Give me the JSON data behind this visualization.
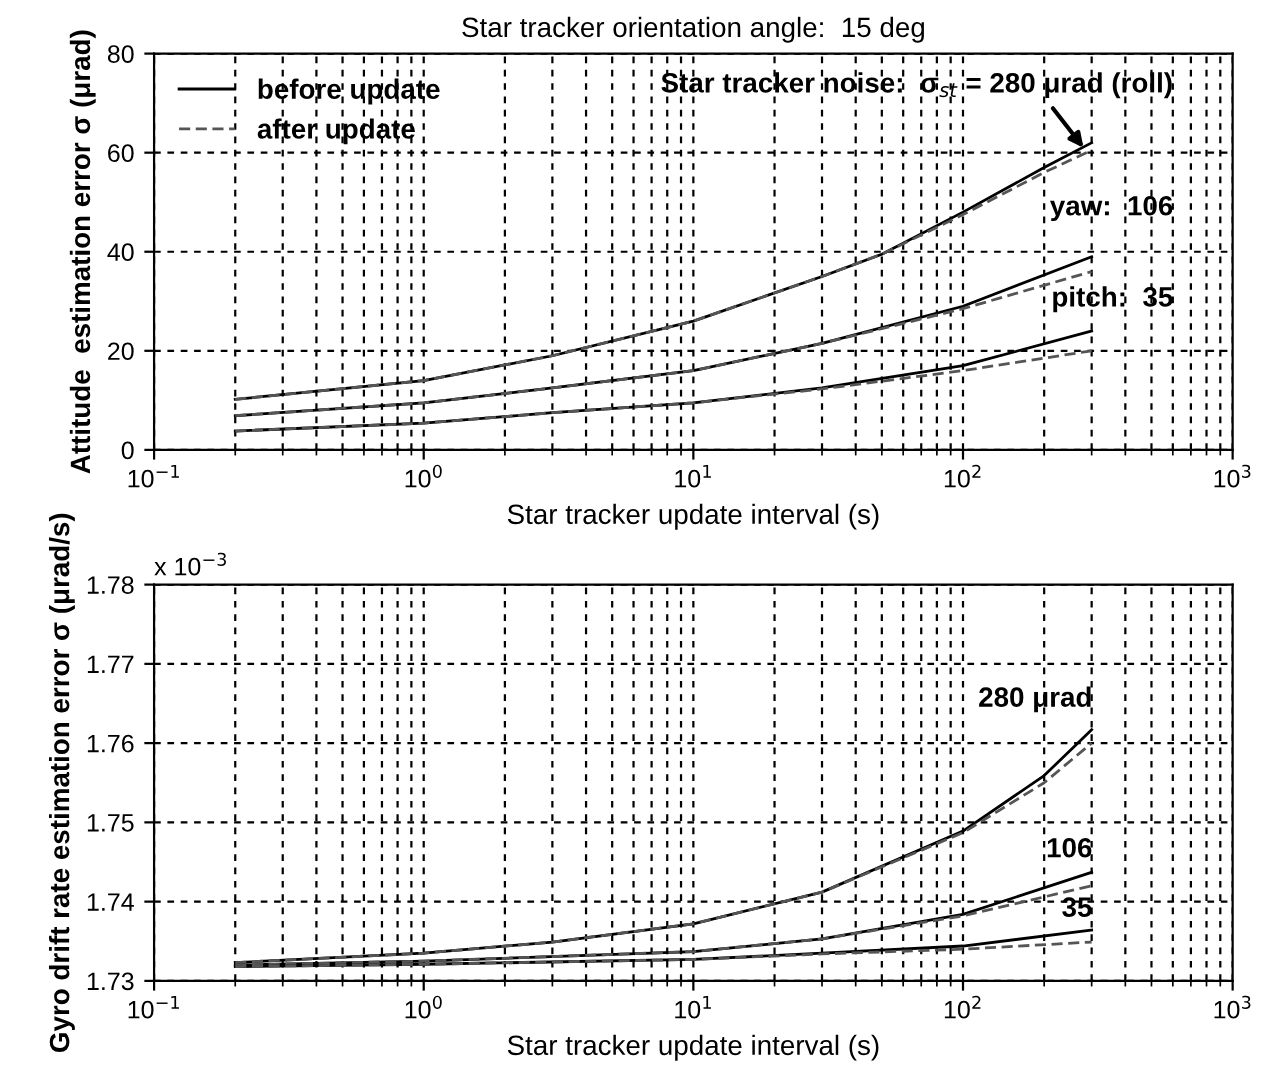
{
  "chart_data": [
    {
      "type": "line",
      "title": "Star tracker orientation angle:  15 deg",
      "xlabel": "Star tracker update interval (s)",
      "ylabel": "Attitude  estimation error σ (μrad)",
      "log": "x",
      "xlim": [
        0.1,
        1000
      ],
      "xticks": [
        {
          "value": 0.1,
          "label": "10$^{−1}$"
        },
        {
          "value": 1,
          "label": "10$^{0}$"
        },
        {
          "value": 10,
          "label": "10$^{1}$"
        },
        {
          "value": 100,
          "label": "10$^{2}$"
        },
        {
          "value": 1000,
          "label": "10$^{3}$"
        }
      ],
      "ylim": [
        0,
        80
      ],
      "yticks": [
        0,
        20,
        40,
        60,
        80
      ],
      "grid": true,
      "legend": "top left",
      "annotations": [
        {
          "text": "Star tracker noise:  σ$_{st}$ = 280 μrad (roll)",
          "x": 280,
          "y": 61
        },
        "yaw:  106",
        "pitch:  35"
      ],
      "series": [
        {
          "name": "before update",
          "color": "#000000",
          "line_style": "solid",
          "x": [
            0.2,
            1,
            3,
            10,
            30,
            50,
            100,
            200,
            300
          ],
          "values": [
            10.2,
            14,
            19,
            26,
            35,
            39.5,
            48,
            57,
            62
          ]
        },
        {
          "name": "after update",
          "color": "#555555",
          "line_style": "dashed",
          "x": [
            0.2,
            1,
            3,
            10,
            30,
            50,
            100,
            200,
            300
          ],
          "values": [
            10.2,
            14,
            19,
            26,
            35,
            39.5,
            47.5,
            56,
            60.5
          ]
        },
        {
          "color": "#000000",
          "line_style": "solid",
          "x": [
            0.2,
            1,
            3,
            10,
            30,
            100,
            300
          ],
          "values": [
            6.9,
            9.5,
            12.5,
            16,
            21.5,
            29,
            39
          ]
        },
        {
          "color": "#555555",
          "line_style": "dashed",
          "x": [
            0.2,
            1,
            3,
            10,
            30,
            100,
            300
          ],
          "values": [
            6.9,
            9.5,
            12.5,
            16,
            21.5,
            28.5,
            36
          ]
        },
        {
          "color": "#000000",
          "line_style": "solid",
          "x": [
            0.2,
            1,
            3,
            10,
            30,
            100,
            300
          ],
          "values": [
            3.8,
            5.4,
            7.5,
            9.5,
            12.5,
            17,
            24
          ]
        },
        {
          "color": "#555555",
          "line_style": "dashed",
          "x": [
            0.2,
            1,
            3,
            10,
            30,
            100,
            300
          ],
          "values": [
            3.8,
            5.4,
            7.5,
            9.5,
            12.3,
            16,
            20
          ]
        }
      ]
    },
    {
      "type": "line",
      "xlabel": "Star tracker update interval (s)",
      "ylabel": "Gyro drift rate estimation error σ (μrad/s)",
      "log": "x",
      "xlim": [
        0.1,
        1000
      ],
      "xticks": [
        {
          "value": 0.1,
          "label": "10$^{−1}$"
        },
        {
          "value": 1,
          "label": "10$^{0}$"
        },
        {
          "value": 10,
          "label": "10$^{1}$"
        },
        {
          "value": 100,
          "label": "10$^{2}$"
        },
        {
          "value": 1000,
          "label": "10$^{3}$"
        }
      ],
      "ylim": [
        1.73,
        1.78
      ],
      "yticks": [
        {
          "value": 1.73,
          "label": "1.73"
        },
        {
          "value": 1.74,
          "label": "1.74"
        },
        {
          "value": 1.75,
          "label": "1.75"
        },
        {
          "value": 1.76,
          "label": "1.76"
        },
        {
          "value": 1.77,
          "label": "1.77"
        },
        {
          "value": 1.78,
          "label": "1.78"
        }
      ],
      "grid": true,
      "annotations": [
        "x 10$^{−3}$",
        "280 μrad",
        "106",
        "35"
      ],
      "series": [
        {
          "color": "#000000",
          "line_style": "solid",
          "x": [
            0.2,
            1,
            3,
            10,
            30,
            100,
            200,
            300
          ],
          "values": [
            1.7323,
            1.7335,
            1.7349,
            1.7372,
            1.7412,
            1.7489,
            1.7559,
            1.7617
          ]
        },
        {
          "color": "#555555",
          "line_style": "dashed",
          "x": [
            0.2,
            1,
            3,
            10,
            30,
            100,
            200,
            300
          ],
          "values": [
            1.7323,
            1.7335,
            1.7349,
            1.7372,
            1.7412,
            1.7487,
            1.755,
            1.76
          ]
        },
        {
          "color": "#000000",
          "line_style": "solid",
          "x": [
            0.2,
            1,
            10,
            30,
            100,
            300
          ],
          "values": [
            1.732,
            1.7325,
            1.7337,
            1.7353,
            1.7384,
            1.7437
          ]
        },
        {
          "color": "#555555",
          "line_style": "dashed",
          "x": [
            0.2,
            1,
            10,
            30,
            100,
            300
          ],
          "values": [
            1.732,
            1.7325,
            1.7337,
            1.7353,
            1.7382,
            1.742
          ]
        },
        {
          "color": "#000000",
          "line_style": "solid",
          "x": [
            0.2,
            1,
            10,
            30,
            100,
            300
          ],
          "values": [
            1.7318,
            1.7321,
            1.7327,
            1.7335,
            1.7344,
            1.7364
          ]
        },
        {
          "color": "#555555",
          "line_style": "dashed",
          "x": [
            0.2,
            1,
            10,
            30,
            100,
            300
          ],
          "values": [
            1.7318,
            1.7321,
            1.7327,
            1.7334,
            1.734,
            1.7349
          ]
        }
      ]
    }
  ]
}
